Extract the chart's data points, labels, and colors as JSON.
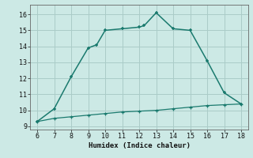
{
  "title": "",
  "xlabel": "Humidex (Indice chaleur)",
  "ylabel": "",
  "background_color": "#cce9e5",
  "grid_color": "#aaccc8",
  "line_color": "#1a7a6e",
  "x_main": [
    6,
    7,
    8,
    9,
    9.5,
    10,
    11,
    12,
    12.3,
    13,
    14,
    15,
    16,
    17,
    18
  ],
  "y_main": [
    9.3,
    10.1,
    12.1,
    13.9,
    14.1,
    15.0,
    15.1,
    15.2,
    15.3,
    16.1,
    15.1,
    15.0,
    13.1,
    11.1,
    10.4
  ],
  "x_secondary": [
    6,
    7,
    8,
    9,
    10,
    11,
    12,
    13,
    14,
    15,
    16,
    17,
    18
  ],
  "y_secondary": [
    9.3,
    9.5,
    9.6,
    9.7,
    9.8,
    9.9,
    9.95,
    10.0,
    10.1,
    10.2,
    10.3,
    10.35,
    10.4
  ],
  "xlim": [
    5.6,
    18.4
  ],
  "ylim": [
    8.8,
    16.6
  ],
  "xticks": [
    6,
    7,
    8,
    9,
    10,
    11,
    12,
    13,
    14,
    15,
    16,
    17,
    18
  ],
  "yticks": [
    9,
    10,
    11,
    12,
    13,
    14,
    15,
    16
  ]
}
